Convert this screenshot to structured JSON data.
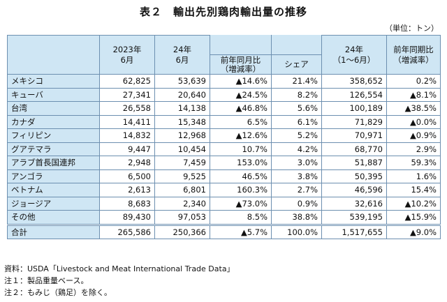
{
  "title": "表２　輸出先別鶏肉輸出量の推移",
  "unit": "（単位：トン）",
  "headers": {
    "col_2023_line1": "2023年",
    "col_2023_line2": "6月",
    "col_2024_group_line1": "24年",
    "col_2024_group_line2": "6月",
    "col_yoy_line1": "前年同月比",
    "col_yoy_line2": "（増減率）",
    "col_share": "シェア",
    "col_ytd_line1": "24年",
    "col_ytd_line2": "（1～6月）",
    "col_ytd_yoy_line1": "前年同期比",
    "col_ytd_yoy_line2": "（増減率）"
  },
  "rows": [
    {
      "name": "メキシコ",
      "y2023_jun": "62,825",
      "y2024_jun": "53,639",
      "yoy": "▲14.6%",
      "share": "21.4%",
      "ytd": "358,652",
      "ytd_yoy": "0.2%"
    },
    {
      "name": "キューバ",
      "y2023_jun": "27,341",
      "y2024_jun": "20,640",
      "yoy": "▲24.5%",
      "share": "8.2%",
      "ytd": "126,554",
      "ytd_yoy": "▲8.1%"
    },
    {
      "name": "台湾",
      "y2023_jun": "26,558",
      "y2024_jun": "14,138",
      "yoy": "▲46.8%",
      "share": "5.6%",
      "ytd": "100,189",
      "ytd_yoy": "▲38.5%"
    },
    {
      "name": "カナダ",
      "y2023_jun": "14,411",
      "y2024_jun": "15,348",
      "yoy": "6.5%",
      "share": "6.1%",
      "ytd": "71,829",
      "ytd_yoy": "▲0.0%"
    },
    {
      "name": "フィリピン",
      "y2023_jun": "14,832",
      "y2024_jun": "12,968",
      "yoy": "▲12.6%",
      "share": "5.2%",
      "ytd": "70,971",
      "ytd_yoy": "▲0.9%"
    },
    {
      "name": "グアテマラ",
      "y2023_jun": "9,447",
      "y2024_jun": "10,454",
      "yoy": "10.7%",
      "share": "4.2%",
      "ytd": "68,770",
      "ytd_yoy": "2.9%"
    },
    {
      "name": "アラブ首長国連邦",
      "y2023_jun": "2,948",
      "y2024_jun": "7,459",
      "yoy": "153.0%",
      "share": "3.0%",
      "ytd": "51,887",
      "ytd_yoy": "59.3%"
    },
    {
      "name": "アンゴラ",
      "y2023_jun": "6,500",
      "y2024_jun": "9,525",
      "yoy": "46.5%",
      "share": "3.8%",
      "ytd": "50,395",
      "ytd_yoy": "1.6%"
    },
    {
      "name": "ベトナム",
      "y2023_jun": "2,613",
      "y2024_jun": "6,801",
      "yoy": "160.3%",
      "share": "2.7%",
      "ytd": "46,596",
      "ytd_yoy": "15.4%"
    },
    {
      "name": "ジョージア",
      "y2023_jun": "8,683",
      "y2024_jun": "2,340",
      "yoy": "▲73.0%",
      "share": "0.9%",
      "ytd": "32,616",
      "ytd_yoy": "▲10.2%"
    },
    {
      "name": "その他",
      "y2023_jun": "89,430",
      "y2024_jun": "97,053",
      "yoy": "8.5%",
      "share": "38.8%",
      "ytd": "539,195",
      "ytd_yoy": "▲15.9%"
    }
  ],
  "total": {
    "name": "合計",
    "y2023_jun": "265,586",
    "y2024_jun": "250,366",
    "yoy": "▲5.7%",
    "share": "100.0%",
    "ytd": "1,517,655",
    "ytd_yoy": "▲9.0%"
  },
  "notes": [
    "資料：USDA「Livestock and Meat International Trade Data」",
    "注１：製品重量ベース。",
    "注２：もみじ（鶏足）を除く。"
  ]
}
